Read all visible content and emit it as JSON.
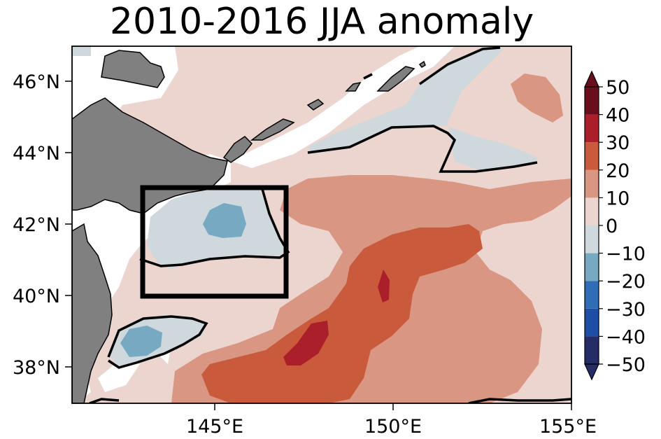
{
  "figure": {
    "title": "2010-2016 JJA anomaly"
  },
  "map": {
    "region": "Northwest Pacific off northern Japan",
    "lon_range": [
      141,
      155
    ],
    "lat_range": [
      37,
      47
    ],
    "x_ticks": [
      "145°E",
      "150°E",
      "155°E"
    ],
    "y_ticks": [
      "38°N",
      "40°N",
      "42°N",
      "44°N",
      "46°N"
    ],
    "land_color": "#808080",
    "zero_contour_color": "#000000",
    "box": {
      "lon": [
        143,
        147
      ],
      "lat": [
        40,
        43
      ]
    }
  },
  "colorbar": {
    "levels": [
      "-50",
      "-40",
      "-30",
      "-20",
      "-10",
      "0",
      "10",
      "20",
      "30",
      "40",
      "50"
    ],
    "bands": [
      {
        "range": "-50 to -40",
        "color": "#262d66"
      },
      {
        "range": "-40 to -30",
        "color": "#1f4ea6"
      },
      {
        "range": "-30 to -20",
        "color": "#2f6db6"
      },
      {
        "range": "-20 to -10",
        "color": "#77a9c3"
      },
      {
        "range": "-10 to 0",
        "color": "#cfd8dc"
      },
      {
        "range": "0 to 10",
        "color": "#ecd5cf"
      },
      {
        "range": "10 to 20",
        "color": "#d99683"
      },
      {
        "range": "20 to 30",
        "color": "#c95b3c"
      },
      {
        "range": "30 to 40",
        "color": "#ab1f2b"
      },
      {
        "range": "40 to 50",
        "color": "#6a0e1d"
      }
    ],
    "extend": "both"
  }
}
